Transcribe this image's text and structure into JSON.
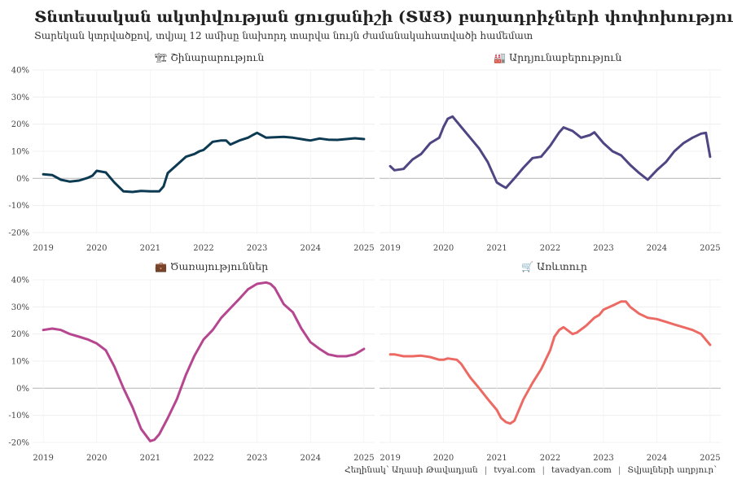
{
  "title": "Տնտեսական ակտիվության ցուցանիշի (ՏԱՑ) բաղադրիչների փոփոխությունը",
  "subtitle": "Տարեկան կտրվածքով, տվյալ 12 ամիսը նախորդ տարվա նույն ժամանակահատվածի համեմատ",
  "caption": {
    "author": "Հեղինակ՝ Աղասի Թավադյան",
    "site1": "tvyal.com",
    "site2": "tavadyan.com",
    "source": "Տվյալների աղբյուր՝"
  },
  "chart_data": [
    {
      "type": "line",
      "title": "Շինարարություն",
      "icon": "construction-icon",
      "icon_glyph": "🏗",
      "color": "#0b3a52",
      "ylim": [
        -20,
        40
      ],
      "yticks": [
        "-20%",
        "-10%",
        "0%",
        "10%",
        "20%",
        "30%",
        "40%"
      ],
      "xticks": [
        "2019",
        "2020",
        "2021",
        "2022",
        "2023",
        "2024",
        "2025"
      ],
      "x": [
        2019.0,
        2019.17,
        2019.33,
        2019.5,
        2019.67,
        2019.83,
        2019.92,
        2020.0,
        2020.17,
        2020.33,
        2020.5,
        2020.67,
        2020.83,
        2021.0,
        2021.17,
        2021.25,
        2021.33,
        2021.5,
        2021.67,
        2021.83,
        2021.92,
        2022.0,
        2022.17,
        2022.33,
        2022.42,
        2022.5,
        2022.67,
        2022.83,
        2022.92,
        2023.0,
        2023.17,
        2023.33,
        2023.5,
        2023.67,
        2023.83,
        2023.92,
        2024.0,
        2024.17,
        2024.33,
        2024.5,
        2024.67,
        2024.83,
        2025.0
      ],
      "y": [
        1.5,
        1.2,
        -0.5,
        -1.2,
        -0.8,
        0.2,
        1.0,
        2.8,
        2.2,
        -1.5,
        -4.8,
        -5.0,
        -4.6,
        -4.8,
        -4.8,
        -3.0,
        2.0,
        5.0,
        8.0,
        9.0,
        10.0,
        10.5,
        13.5,
        14.0,
        14.0,
        12.5,
        14.0,
        15.0,
        16.0,
        16.8,
        15.0,
        15.2,
        15.3,
        15.0,
        14.5,
        14.2,
        14.0,
        14.7,
        14.3,
        14.2,
        14.5,
        14.8,
        14.5
      ]
    },
    {
      "type": "line",
      "title": "Արդյունաբերություն",
      "icon": "factory-icon",
      "icon_glyph": "🏭",
      "color": "#4e4583",
      "ylim": [
        -20,
        40
      ],
      "yticks": [
        "-20%",
        "-10%",
        "0%",
        "10%",
        "20%",
        "30%",
        "40%"
      ],
      "xticks": [
        "2019",
        "2020",
        "2021",
        "2022",
        "2023",
        "2024",
        "2025"
      ],
      "x": [
        2019.0,
        2019.08,
        2019.25,
        2019.42,
        2019.58,
        2019.75,
        2019.92,
        2020.0,
        2020.08,
        2020.17,
        2020.33,
        2020.5,
        2020.67,
        2020.83,
        2021.0,
        2021.08,
        2021.17,
        2021.33,
        2021.5,
        2021.67,
        2021.83,
        2022.0,
        2022.17,
        2022.25,
        2022.42,
        2022.58,
        2022.75,
        2022.83,
        2023.0,
        2023.17,
        2023.33,
        2023.5,
        2023.67,
        2023.83,
        2024.0,
        2024.17,
        2024.33,
        2024.5,
        2024.67,
        2024.83,
        2024.92,
        2025.0
      ],
      "y": [
        4.5,
        3.0,
        3.5,
        7.0,
        9.0,
        13.0,
        15.0,
        19.0,
        22.0,
        22.8,
        19.0,
        15.0,
        11.0,
        6.0,
        -1.5,
        -2.5,
        -3.5,
        0.0,
        4.0,
        7.5,
        8.0,
        12.0,
        17.0,
        18.8,
        17.5,
        15.0,
        16.0,
        17.0,
        13.0,
        10.0,
        8.5,
        5.0,
        2.0,
        -0.5,
        3.0,
        6.0,
        10.0,
        13.0,
        15.0,
        16.5,
        16.8,
        8.0
      ]
    },
    {
      "type": "line",
      "title": "Ծառայություններ",
      "icon": "briefcase-icon",
      "icon_glyph": "💼",
      "color": "#b5468f",
      "ylim": [
        -20,
        40
      ],
      "yticks": [
        "-20%",
        "-10%",
        "0%",
        "10%",
        "20%",
        "30%",
        "40%"
      ],
      "xticks": [
        "2019",
        "2020",
        "2021",
        "2022",
        "2023",
        "2024",
        "2025"
      ],
      "x": [
        2019.0,
        2019.17,
        2019.33,
        2019.5,
        2019.67,
        2019.83,
        2020.0,
        2020.17,
        2020.33,
        2020.5,
        2020.67,
        2020.83,
        2021.0,
        2021.08,
        2021.17,
        2021.33,
        2021.5,
        2021.67,
        2021.83,
        2022.0,
        2022.17,
        2022.33,
        2022.5,
        2022.67,
        2022.83,
        2023.0,
        2023.17,
        2023.25,
        2023.33,
        2023.5,
        2023.67,
        2023.83,
        2024.0,
        2024.17,
        2024.33,
        2024.5,
        2024.67,
        2024.83,
        2025.0
      ],
      "y": [
        21.5,
        22.0,
        21.5,
        20.0,
        19.0,
        18.0,
        16.5,
        14.0,
        8.0,
        0.0,
        -7.0,
        -15.0,
        -19.5,
        -19.0,
        -17.0,
        -11.0,
        -4.0,
        5.0,
        12.0,
        18.0,
        21.5,
        26.0,
        29.5,
        33.0,
        36.5,
        38.5,
        39.0,
        38.5,
        37.0,
        31.0,
        28.0,
        22.0,
        17.0,
        14.5,
        12.5,
        11.8,
        11.8,
        12.5,
        14.5
      ]
    },
    {
      "type": "line",
      "title": "Առևտուր",
      "icon": "shopping-cart-icon",
      "icon_glyph": "🛒",
      "color": "#ec6a63",
      "ylim": [
        -20,
        40
      ],
      "yticks": [
        "-20%",
        "-10%",
        "0%",
        "10%",
        "20%",
        "30%",
        "40%"
      ],
      "xticks": [
        "2019",
        "2020",
        "2021",
        "2022",
        "2023",
        "2024",
        "2025"
      ],
      "x": [
        2019.0,
        2019.08,
        2019.25,
        2019.42,
        2019.58,
        2019.75,
        2019.92,
        2020.0,
        2020.08,
        2020.25,
        2020.33,
        2020.5,
        2020.67,
        2020.83,
        2021.0,
        2021.08,
        2021.17,
        2021.25,
        2021.33,
        2021.5,
        2021.67,
        2021.83,
        2022.0,
        2022.08,
        2022.17,
        2022.25,
        2022.42,
        2022.5,
        2022.67,
        2022.83,
        2022.92,
        2023.0,
        2023.17,
        2023.33,
        2023.42,
        2023.5,
        2023.67,
        2023.83,
        2024.0,
        2024.17,
        2024.33,
        2024.5,
        2024.67,
        2024.83,
        2025.0
      ],
      "y": [
        12.5,
        12.5,
        11.8,
        11.8,
        12.0,
        11.5,
        10.5,
        10.5,
        11.0,
        10.5,
        9.0,
        4.0,
        0.0,
        -4.0,
        -8.0,
        -11.0,
        -12.5,
        -13.0,
        -12.0,
        -4.0,
        2.0,
        7.0,
        14.0,
        19.0,
        21.5,
        22.5,
        20.0,
        20.5,
        23.0,
        26.0,
        27.0,
        29.0,
        30.5,
        32.0,
        32.0,
        30.0,
        27.5,
        26.0,
        25.5,
        24.5,
        23.5,
        22.5,
        21.5,
        20.0,
        16.0
      ]
    }
  ]
}
